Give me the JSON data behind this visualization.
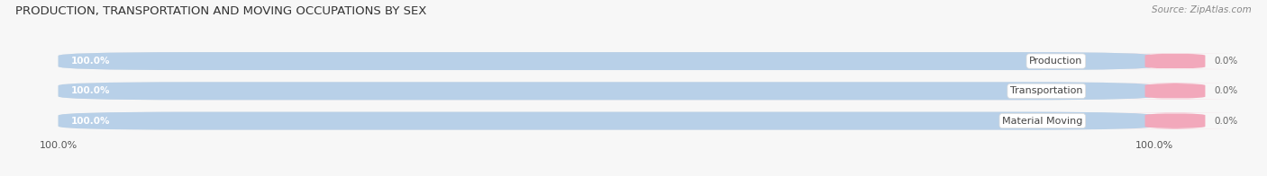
{
  "title": "PRODUCTION, TRANSPORTATION AND MOVING OCCUPATIONS BY SEX",
  "source": "Source: ZipAtlas.com",
  "categories": [
    "Production",
    "Transportation",
    "Material Moving"
  ],
  "male_pct": [
    100.0,
    100.0,
    100.0
  ],
  "female_pct": [
    0.0,
    0.0,
    0.0
  ],
  "male_color": "#b8d0e8",
  "female_color": "#f2a8bb",
  "bg_bar_color": "#e6e6e6",
  "background_color": "#f7f7f7",
  "title_fontsize": 9.5,
  "source_fontsize": 7.5,
  "tick_fontsize": 8,
  "legend_fontsize": 8.5,
  "bar_label_fontsize": 7.5,
  "cat_label_fontsize": 8,
  "left_tick_label": "100.0%",
  "right_tick_label": "100.0%"
}
